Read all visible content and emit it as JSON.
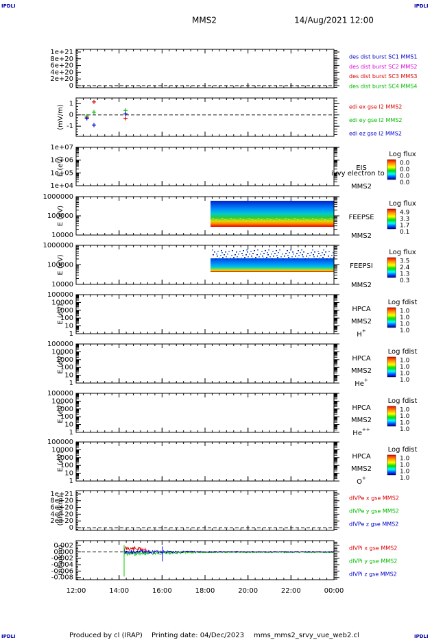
{
  "header": {
    "corner_label": "IPDLI",
    "title": "MMS2",
    "date": "14/Aug/2021 12:00"
  },
  "xaxis": {
    "xlim": [
      12,
      24
    ],
    "xticks": [
      {
        "value": 12,
        "label": "12:00"
      },
      {
        "value": 14,
        "label": "14:00"
      },
      {
        "value": 16,
        "label": "16:00"
      },
      {
        "value": 18,
        "label": "18:00"
      },
      {
        "value": 20,
        "label": "20:00"
      },
      {
        "value": 22,
        "label": "22:00"
      },
      {
        "value": 24,
        "label": "00:00"
      }
    ]
  },
  "panels": [
    {
      "scale": "linear",
      "ylim": [
        -6e+19,
        1.08e+21
      ],
      "zero_line": true,
      "yticks": [
        {
          "value": 1e+21,
          "label": "1e+21"
        },
        {
          "value": 8e+20,
          "label": "8e+20"
        },
        {
          "value": 6e+20,
          "label": "6e+20"
        },
        {
          "value": 4e+20,
          "label": "4e+20"
        },
        {
          "value": 2e+20,
          "label": "2e+20"
        },
        0
      ],
      "legend": [
        {
          "name": "des dist burst SC1 MMS1",
          "color": "#0000cc"
        },
        {
          "name": "des dist burst SC2 MMS2",
          "color": "#dd00dd"
        },
        {
          "name": "des dist burst SC3 MMS3",
          "color": "#dd0000"
        },
        {
          "name": "des dist burst SC4 MMS4",
          "color": "#00bb00"
        }
      ]
    },
    {
      "ylabel": "(mV/m)",
      "scale": "linear",
      "ylim": [
        -1.9,
        1.5
      ],
      "zero_line": true,
      "yticks": [
        1,
        0,
        -1
      ],
      "series": [
        {
          "name": "edi ex gse l2 MMS2",
          "color": "#dd0000",
          "x": [
            12.5,
            12.83,
            14.3
          ],
          "values": [
            -0.25,
            1.15,
            -0.3
          ]
        },
        {
          "name": "edi ey gse l2 MMS2",
          "color": "#00bb00",
          "x": [
            12.5,
            12.83,
            14.3
          ],
          "values": [
            -0.1,
            0.25,
            0.4
          ]
        },
        {
          "name": "edi ez gse l2 MMS2",
          "color": "#0000cc",
          "x": [
            12.5,
            12.83,
            14.3
          ],
          "values": [
            -0.3,
            -0.9,
            0.1
          ]
        }
      ]
    },
    {
      "ylabel": "E (eV)",
      "scale": "log",
      "ylim": [
        10000.0,
        10000000.0
      ],
      "yticks": [
        {
          "value": 10000000.0,
          "label": "1e+07"
        },
        {
          "value": 1000000.0,
          "label": "1e+06"
        },
        {
          "value": 100000.0,
          "label": "1e+05"
        },
        {
          "value": 10000.0,
          "label": "1e+04"
        }
      ],
      "instrument": [
        "EIS",
        "MMS2"
      ],
      "overlay_text": "ivvy electron to",
      "colorbar": {
        "title": "Log flux",
        "labels": [
          "0.0",
          "0.0",
          "0.0",
          "0.0"
        ]
      }
    },
    {
      "ylabel": "E (eV)",
      "scale": "log",
      "ylim": [
        10000.0,
        1000000.0
      ],
      "yticks": [
        1000000,
        100000,
        10000
      ],
      "instrument": [
        "FEEPSE",
        "MMS2"
      ],
      "colorbar": {
        "title": "Log flux",
        "labels": [
          "4.9",
          "3.3",
          "1.7",
          "0.1"
        ]
      }
    },
    {
      "ylabel": "E (eV)",
      "scale": "log",
      "ylim": [
        10000.0,
        1000000.0
      ],
      "yticks": [
        1000000,
        100000,
        10000
      ],
      "instrument": [
        "FEEPSI",
        "MMS2"
      ],
      "colorbar": {
        "title": "Log flux",
        "labels": [
          "3.5",
          "2.4",
          "1.3",
          "0.3"
        ]
      }
    },
    {
      "ylabel": "E (eV)",
      "scale": "log",
      "ylim": [
        1,
        100000.0
      ],
      "yticks": [
        100000,
        10000,
        1000,
        100,
        10,
        1
      ],
      "instrument": [
        "HPCA",
        "MMS2"
      ],
      "species": {
        "base": "H",
        "sup": "+"
      },
      "colorbar": {
        "title": "Log fdist",
        "labels": [
          "1.0",
          "1.0",
          "1.0",
          "1.0"
        ]
      }
    },
    {
      "ylabel": "E (eV)",
      "scale": "log",
      "ylim": [
        1,
        100000.0
      ],
      "yticks": [
        100000,
        10000,
        1000,
        100,
        10,
        1
      ],
      "instrument": [
        "HPCA",
        "MMS2"
      ],
      "species": {
        "base": "He",
        "sup": "+"
      },
      "colorbar": {
        "title": "Log fdist",
        "labels": [
          "1.0",
          "1.0",
          "1.0",
          "1.0"
        ]
      }
    },
    {
      "ylabel": "E (eV)",
      "scale": "log",
      "ylim": [
        1,
        100000.0
      ],
      "yticks": [
        100000,
        10000,
        1000,
        100,
        10,
        1
      ],
      "instrument": [
        "HPCA",
        "MMS2"
      ],
      "species": {
        "base": "He",
        "sup": "++"
      },
      "colorbar": {
        "title": "Log fdist",
        "labels": [
          "1.0",
          "1.0",
          "1.0",
          "1.0"
        ]
      }
    },
    {
      "ylabel": "E (eV)",
      "scale": "log",
      "ylim": [
        1,
        100000.0
      ],
      "yticks": [
        100000,
        10000,
        1000,
        100,
        10,
        1
      ],
      "instrument": [
        "HPCA",
        "MMS2"
      ],
      "species": {
        "base": "O",
        "sup": "+"
      },
      "colorbar": {
        "title": "Log fdist",
        "labels": [
          "1.0",
          "1.0",
          "1.0",
          "1.0"
        ]
      }
    },
    {
      "ylabel": "(nPa/km)",
      "scale": "linear",
      "ylim": [
        -8e+19,
        1.1e+21
      ],
      "zero_line": true,
      "yticks": [
        {
          "value": 1e+21,
          "label": "1e+21"
        },
        {
          "value": 8e+20,
          "label": "8e+20"
        },
        {
          "value": 6e+20,
          "label": "6e+20"
        },
        {
          "value": 4e+20,
          "label": "4e+20"
        },
        {
          "value": 2e+20,
          "label": "2e+20"
        },
        0
      ],
      "legend": [
        {
          "name": "dIVPe x gse MMS2",
          "color": "#dd0000"
        },
        {
          "name": "dIVPe y gse MMS2",
          "color": "#00bb00"
        },
        {
          "name": "dIVPe z gse MMS2",
          "color": "#0000cc"
        }
      ]
    },
    {
      "ylabel": "(nPa/km)",
      "scale": "linear",
      "ylim": [
        -0.0087,
        0.0035
      ],
      "zero_line": true,
      "yticks": [
        0.002,
        {
          "value": 0,
          "label": "0.000"
        },
        -0.002,
        -0.004,
        -0.006,
        -0.008
      ],
      "legend": [
        {
          "name": "dIVPi x gse MMS2",
          "color": "#dd0000"
        },
        {
          "name": "dIVPi y gse MMS2",
          "color": "#00bb00"
        },
        {
          "name": "dIVPi z gse MMS2",
          "color": "#0000cc"
        }
      ]
    }
  ],
  "footer": {
    "produced": "Produced by cl (IRAP)",
    "printing": "Printing date: 04/Dec/2023",
    "file": "mms_mms2_srvy_vue_web2.cl"
  }
}
